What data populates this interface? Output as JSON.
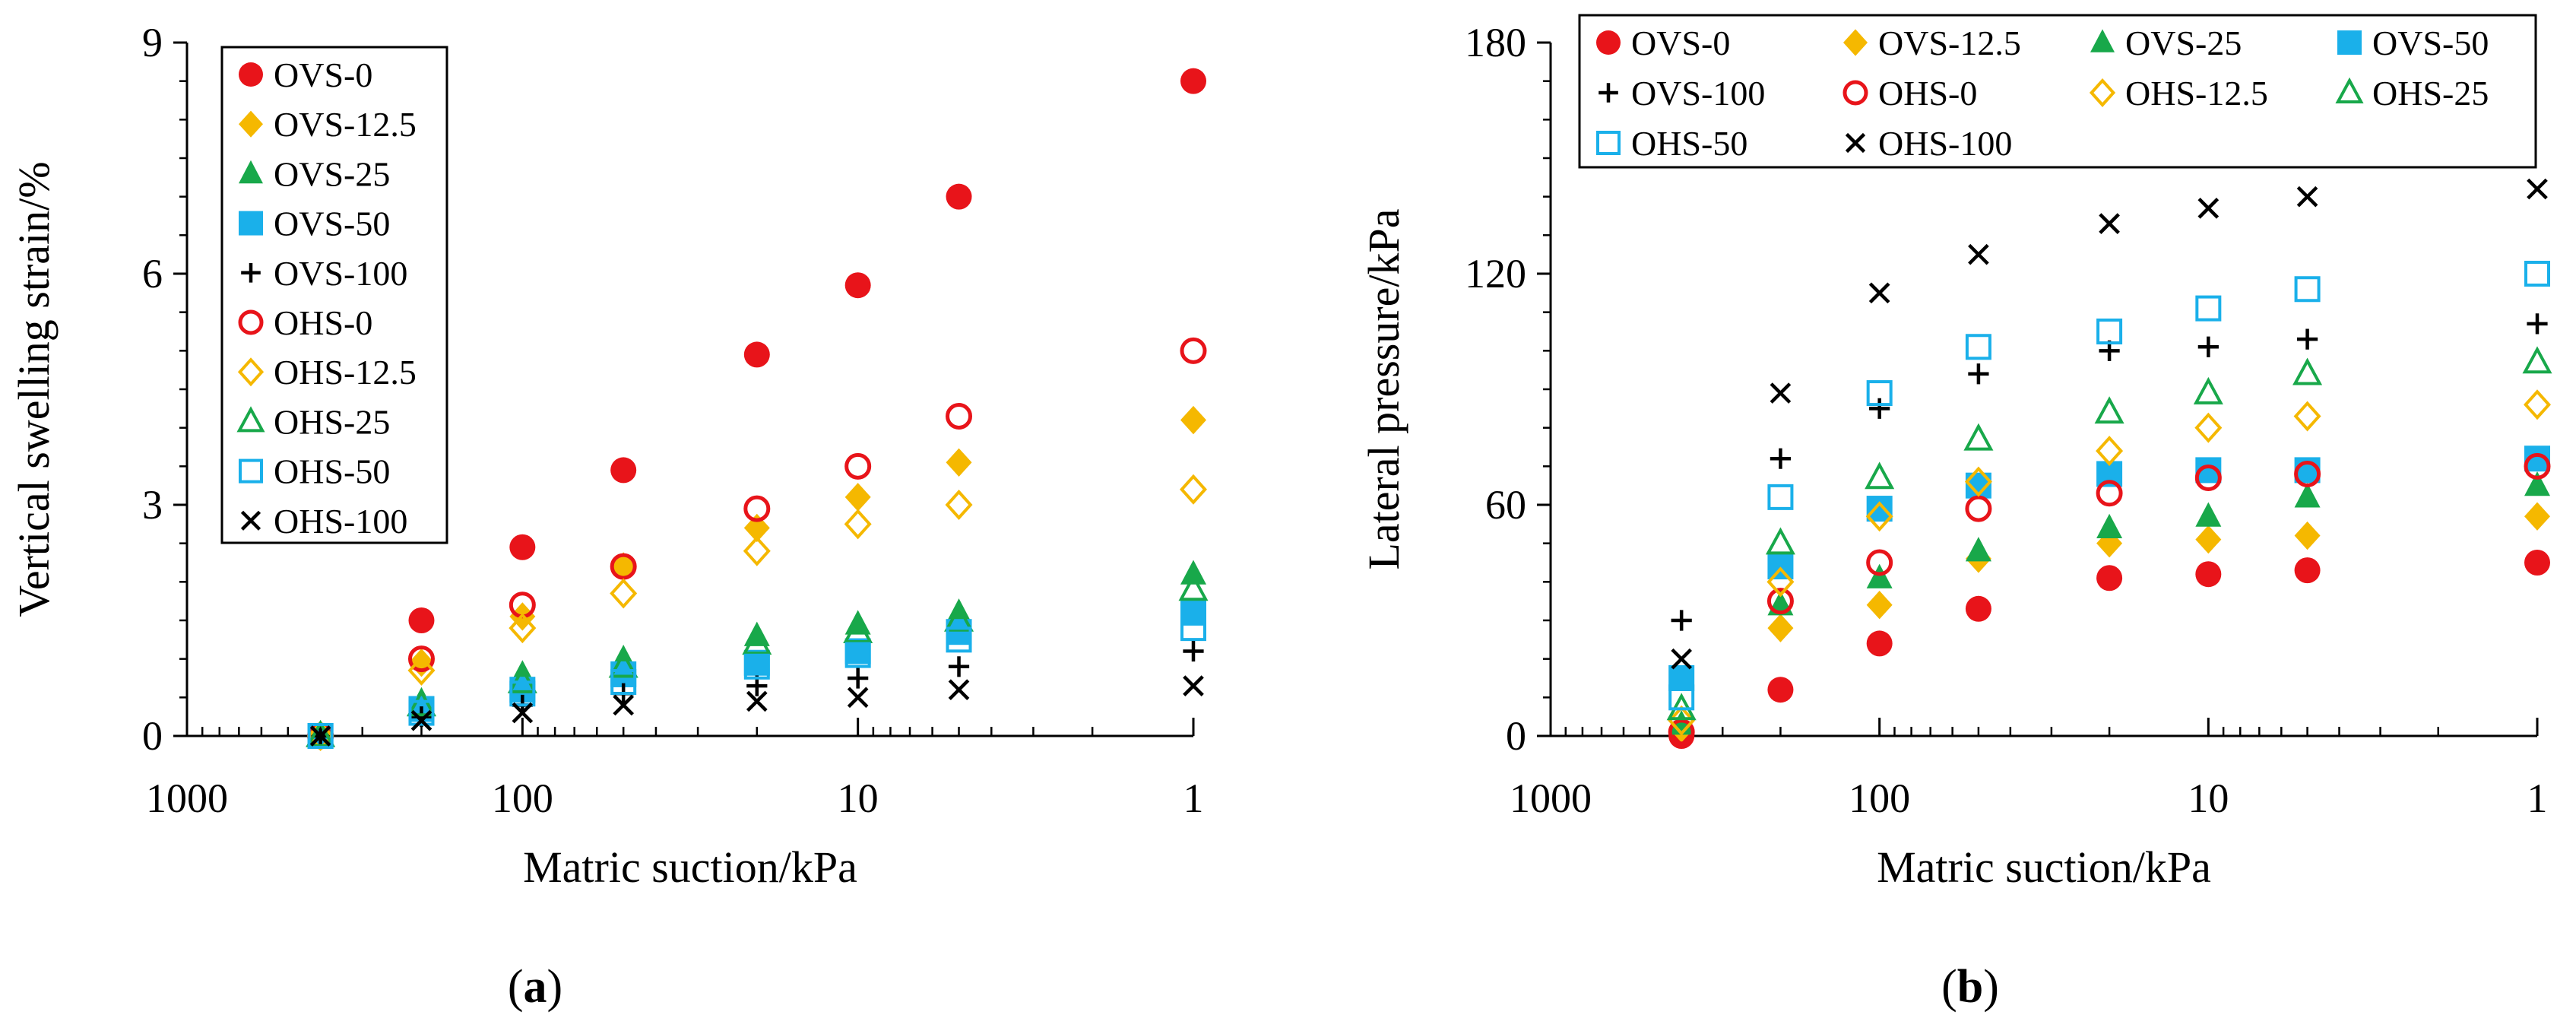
{
  "figure": {
    "caption_a": "a",
    "caption_b": "b"
  },
  "chart_data": [
    {
      "type": "scatter",
      "panel": "a",
      "xscale": "log",
      "xreversed": true,
      "xlim": [
        1000,
        1
      ],
      "ylim": [
        0,
        9
      ],
      "xticks": [
        1000,
        100,
        10,
        1
      ],
      "xtick_labels": [
        "1000",
        "100",
        "10",
        "1"
      ],
      "yticks": [
        0,
        3,
        6,
        9
      ],
      "ytick_labels": [
        "0",
        "3",
        "6",
        "9"
      ],
      "xlabel": "Matric suction/kPa",
      "ylabel": "Vertical swelling strain/%",
      "legend_position": "top-left",
      "x": [
        400,
        200,
        100,
        50,
        20,
        10,
        5,
        1
      ],
      "series": [
        {
          "name": "OVS-0",
          "marker": "circle-filled",
          "color": "#e8141a",
          "values": [
            0,
            1.5,
            2.45,
            3.45,
            4.95,
            5.85,
            7.0,
            8.5
          ]
        },
        {
          "name": "OVS-12.5",
          "marker": "diamond-filled",
          "color": "#f5b800",
          "values": [
            0,
            0.95,
            1.55,
            2.2,
            2.7,
            3.1,
            3.55,
            4.1
          ]
        },
        {
          "name": "OVS-25",
          "marker": "triangle-filled",
          "color": "#18a84a",
          "values": [
            0,
            0.45,
            0.8,
            1.0,
            1.3,
            1.45,
            1.6,
            2.1
          ]
        },
        {
          "name": "OVS-50",
          "marker": "square-filled",
          "color": "#1ab0ea",
          "values": [
            0,
            0.35,
            0.6,
            0.8,
            0.95,
            1.1,
            1.35,
            1.6
          ]
        },
        {
          "name": "OVS-100",
          "marker": "plus",
          "color": "#000000",
          "values": [
            0,
            0.25,
            0.4,
            0.55,
            0.65,
            0.75,
            0.9,
            1.1
          ]
        },
        {
          "name": "OHS-0",
          "marker": "circle-open",
          "color": "#e8141a",
          "values": [
            0,
            1.0,
            1.7,
            2.2,
            2.95,
            3.5,
            4.15,
            5.0
          ]
        },
        {
          "name": "OHS-12.5",
          "marker": "diamond-open",
          "color": "#f5b800",
          "values": [
            0,
            0.85,
            1.4,
            1.85,
            2.4,
            2.75,
            3.0,
            3.2
          ]
        },
        {
          "name": "OHS-25",
          "marker": "triangle-open",
          "color": "#18a84a",
          "values": [
            0,
            0.4,
            0.7,
            0.9,
            1.2,
            1.35,
            1.5,
            1.9
          ]
        },
        {
          "name": "OHS-50",
          "marker": "square-open",
          "color": "#1ab0ea",
          "values": [
            0,
            0.3,
            0.55,
            0.7,
            0.9,
            1.05,
            1.25,
            1.4
          ]
        },
        {
          "name": "OHS-100",
          "marker": "cross",
          "color": "#000000",
          "values": [
            0,
            0.2,
            0.3,
            0.4,
            0.45,
            0.5,
            0.6,
            0.65
          ]
        }
      ]
    },
    {
      "type": "scatter",
      "panel": "b",
      "xscale": "log",
      "xreversed": true,
      "xlim": [
        1000,
        1
      ],
      "ylim": [
        0,
        180
      ],
      "xticks": [
        1000,
        100,
        10,
        1
      ],
      "xtick_labels": [
        "1000",
        "100",
        "10",
        "1"
      ],
      "yticks": [
        0,
        60,
        120,
        180
      ],
      "ytick_labels": [
        "0",
        "60",
        "120",
        "180"
      ],
      "xlabel": "Matric suction/kPa",
      "ylabel": "Lateral pressure/kPa",
      "legend_position": "top",
      "x": [
        400,
        200,
        100,
        50,
        20,
        10,
        5,
        1
      ],
      "series": [
        {
          "name": "OVS-0",
          "marker": "circle-filled",
          "color": "#e8141a",
          "values": [
            0,
            12,
            24,
            33,
            41,
            42,
            43,
            45
          ]
        },
        {
          "name": "OVS-12.5",
          "marker": "diamond-filled",
          "color": "#f5b800",
          "values": [
            2,
            28,
            34,
            46,
            50,
            51,
            52,
            57
          ]
        },
        {
          "name": "OVS-25",
          "marker": "triangle-filled",
          "color": "#18a84a",
          "values": [
            3,
            34,
            41,
            48,
            54,
            57,
            62,
            65
          ]
        },
        {
          "name": "OVS-50",
          "marker": "square-filled",
          "color": "#1ab0ea",
          "values": [
            15,
            44,
            59,
            65,
            68,
            69,
            69,
            72
          ]
        },
        {
          "name": "OVS-100",
          "marker": "plus",
          "color": "#000000",
          "values": [
            30,
            72,
            85,
            94,
            100,
            101,
            103,
            107
          ]
        },
        {
          "name": "OHS-0",
          "marker": "circle-open",
          "color": "#e8141a",
          "values": [
            1,
            35,
            45,
            59,
            63,
            67,
            68,
            70
          ]
        },
        {
          "name": "OHS-12.5",
          "marker": "diamond-open",
          "color": "#f5b800",
          "values": [
            4,
            40,
            57,
            66,
            74,
            80,
            83,
            86
          ]
        },
        {
          "name": "OHS-25",
          "marker": "triangle-open",
          "color": "#18a84a",
          "values": [
            7,
            50,
            67,
            77,
            84,
            89,
            94,
            97
          ]
        },
        {
          "name": "OHS-50",
          "marker": "square-open",
          "color": "#1ab0ea",
          "values": [
            10,
            62,
            89,
            101,
            105,
            111,
            116,
            120
          ]
        },
        {
          "name": "OHS-100",
          "marker": "cross",
          "color": "#000000",
          "values": [
            20,
            89,
            115,
            125,
            133,
            137,
            140,
            142
          ]
        }
      ]
    }
  ]
}
